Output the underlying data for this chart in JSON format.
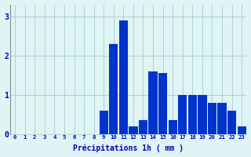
{
  "hours": [
    0,
    1,
    2,
    3,
    4,
    5,
    6,
    7,
    8,
    9,
    10,
    11,
    12,
    13,
    14,
    15,
    16,
    17,
    18,
    19,
    20,
    21,
    22,
    23
  ],
  "values": [
    0,
    0,
    0,
    0,
    0,
    0,
    0,
    0,
    0,
    0.6,
    2.3,
    2.9,
    0.2,
    0.35,
    1.6,
    1.55,
    0.35,
    1.0,
    1.0,
    1.0,
    0.8,
    0.8,
    0.6,
    0.2
  ],
  "bar_color": "#0033cc",
  "background_color": "#dff4f4",
  "grid_color": "#aacccc",
  "xlabel": "Précipitations 1h ( mm )",
  "xlabel_color": "#0000bb",
  "tick_color": "#0000bb",
  "ylim": [
    0,
    3.3
  ],
  "yticks": [
    0,
    1,
    2,
    3
  ],
  "bar_width": 0.9,
  "spine_color": "#888888"
}
